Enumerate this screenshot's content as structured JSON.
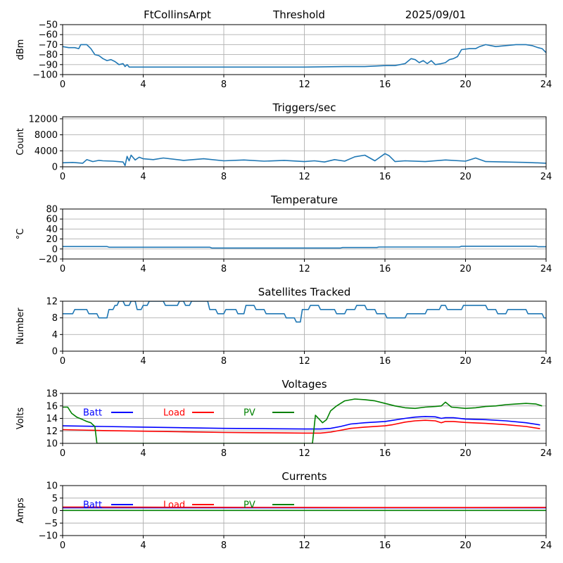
{
  "header": {
    "station": "FtCollinsArpt",
    "mode": "Threshold",
    "date": "2025/09/01"
  },
  "chart_data": [
    {
      "type": "line",
      "id": "signal",
      "title": "",
      "xlabel": "",
      "ylabel": "dBm",
      "xlim": [
        0,
        24
      ],
      "ylim": [
        -100,
        -50
      ],
      "xticks": [
        0,
        4,
        8,
        12,
        16,
        20,
        24
      ],
      "yticks": [
        -100,
        -90,
        -80,
        -70,
        -60,
        -50
      ],
      "ytick_labels": [
        "−100",
        "−90",
        "−80",
        "−70",
        "−60",
        "−50"
      ],
      "grid": true,
      "legend": false,
      "series": [
        {
          "color": "#1f77b4",
          "x": [
            0,
            0.3,
            0.6,
            0.8,
            0.9,
            1.0,
            1.2,
            1.4,
            1.6,
            1.8,
            2.0,
            2.2,
            2.4,
            2.6,
            2.8,
            3.0,
            3.1,
            3.2,
            3.3,
            4,
            6,
            8,
            10,
            12,
            14,
            15,
            16,
            16.5,
            17.0,
            17.3,
            17.5,
            17.7,
            17.9,
            18.1,
            18.3,
            18.5,
            18.8,
            19.0,
            19.2,
            19.4,
            19.6,
            19.8,
            20.2,
            20.5,
            20.7,
            21,
            21.5,
            22,
            22.5,
            23,
            23.3,
            23.6,
            23.8,
            24
          ],
          "y": [
            -72,
            -73,
            -73,
            -74,
            -70,
            -70,
            -70,
            -74,
            -80,
            -81,
            -84,
            -86,
            -85,
            -87,
            -90,
            -89,
            -92,
            -90,
            -92.5,
            -92.5,
            -92.5,
            -92.5,
            -92.5,
            -92.5,
            -92,
            -92,
            -91,
            -91,
            -89,
            -84,
            -85,
            -88,
            -86,
            -89,
            -86,
            -90,
            -89,
            -88,
            -85,
            -84,
            -82,
            -75,
            -74,
            -74,
            -72,
            -70,
            -72,
            -71,
            -70,
            -70,
            -71,
            -73,
            -74,
            -78
          ]
        }
      ]
    },
    {
      "type": "line",
      "id": "triggers",
      "title": "Triggers/sec",
      "xlabel": "",
      "ylabel": "Count",
      "xlim": [
        0,
        24
      ],
      "ylim": [
        0,
        12500
      ],
      "xticks": [
        0,
        4,
        8,
        12,
        16,
        20,
        24
      ],
      "yticks": [
        0,
        4000,
        8000,
        12000
      ],
      "ytick_labels": [
        "0",
        "4000",
        "8000",
        "12000"
      ],
      "grid": true,
      "legend": false,
      "series": [
        {
          "color": "#1f77b4",
          "x": [
            0,
            0.5,
            1.0,
            1.2,
            1.5,
            1.8,
            2.0,
            2.5,
            3.0,
            3.1,
            3.2,
            3.3,
            3.4,
            3.6,
            3.8,
            4.0,
            4.5,
            5,
            6,
            7,
            8,
            9,
            10,
            11,
            12,
            12.5,
            13,
            13.5,
            14.0,
            14.5,
            15.0,
            15.5,
            16.0,
            16.2,
            16.5,
            17,
            18,
            19,
            20,
            20.5,
            21,
            22,
            23,
            24
          ],
          "y": [
            1000,
            1100,
            900,
            1800,
            1300,
            1600,
            1500,
            1400,
            1200,
            300,
            2600,
            1500,
            2900,
            1700,
            2400,
            2000,
            1800,
            2200,
            1600,
            2000,
            1500,
            1700,
            1400,
            1600,
            1300,
            1500,
            1200,
            1800,
            1400,
            2500,
            2900,
            1500,
            3300,
            2800,
            1300,
            1500,
            1300,
            1700,
            1400,
            2200,
            1300,
            1200,
            1100,
            900
          ]
        }
      ]
    },
    {
      "type": "line",
      "id": "temperature",
      "title": "Temperature",
      "xlabel": "",
      "ylabel": "°C",
      "xlim": [
        0,
        24
      ],
      "ylim": [
        -20,
        80
      ],
      "xticks": [
        0,
        4,
        8,
        12,
        16,
        20,
        24
      ],
      "yticks": [
        -20,
        0,
        20,
        40,
        60,
        80
      ],
      "ytick_labels": [
        "−20",
        "0",
        "20",
        "40",
        "60",
        "80"
      ],
      "grid": true,
      "legend": false,
      "series": [
        {
          "color": "#1f77b4",
          "x": [
            0,
            2.2,
            2.3,
            7.3,
            7.4,
            13.8,
            13.9,
            15.6,
            15.7,
            19.7,
            19.8,
            23.5,
            23.6,
            24
          ],
          "y": [
            5,
            5,
            3.5,
            3.5,
            2,
            2,
            3,
            3,
            4,
            4,
            5.5,
            5.5,
            4.5,
            4.5
          ]
        }
      ]
    },
    {
      "type": "line",
      "id": "satellites",
      "title": "Satellites Tracked",
      "xlabel": "",
      "ylabel": "Number",
      "xlim": [
        0,
        24
      ],
      "ylim": [
        0,
        12
      ],
      "xticks": [
        0,
        4,
        8,
        12,
        16,
        20,
        24
      ],
      "yticks": [
        0,
        4,
        8,
        12
      ],
      "ytick_labels": [
        "0",
        "4",
        "8",
        "12"
      ],
      "grid": true,
      "legend": false,
      "series": [
        {
          "color": "#1f77b4",
          "x": [
            0,
            0.5,
            0.6,
            1.2,
            1.3,
            1.7,
            1.8,
            2.2,
            2.3,
            2.5,
            2.6,
            2.7,
            2.8,
            3.0,
            3.1,
            3.3,
            3.4,
            3.6,
            3.7,
            3.9,
            4.0,
            4.2,
            4.3,
            5,
            5.1,
            5.7,
            5.8,
            6.0,
            6.1,
            6.3,
            6.4,
            7.2,
            7.3,
            7.6,
            7.7,
            8.0,
            8.1,
            8.6,
            8.7,
            9.0,
            9.1,
            9.5,
            9.6,
            10.0,
            10.1,
            11.0,
            11.1,
            11.5,
            11.6,
            11.8,
            11.9,
            12.2,
            12.3,
            12.7,
            12.8,
            13.5,
            13.6,
            14.0,
            14.1,
            14.5,
            14.6,
            15.0,
            15.1,
            15.5,
            15.6,
            16.0,
            16.1,
            17.0,
            17.1,
            18.0,
            18.1,
            18.7,
            18.8,
            19.0,
            19.1,
            19.8,
            19.9,
            21.0,
            21.1,
            21.5,
            21.6,
            22.0,
            22.1,
            23.0,
            23.1,
            23.8,
            23.9,
            24
          ],
          "y": [
            9,
            9,
            10,
            10,
            9,
            9,
            8,
            8,
            10,
            10,
            11,
            11,
            12,
            12,
            11,
            11,
            12,
            12,
            10,
            10,
            11,
            11,
            12,
            12,
            11,
            11,
            12,
            12,
            11,
            11,
            12,
            12,
            10,
            10,
            9,
            9,
            10,
            10,
            9,
            9,
            11,
            11,
            10,
            10,
            9,
            9,
            8,
            8,
            7,
            7,
            10,
            10,
            11,
            11,
            10,
            10,
            9,
            9,
            10,
            10,
            11,
            11,
            10,
            10,
            9,
            9,
            8,
            8,
            9,
            9,
            10,
            10,
            11,
            11,
            10,
            10,
            11,
            11,
            10,
            10,
            9,
            9,
            10,
            10,
            9,
            9,
            8,
            8
          ]
        }
      ]
    },
    {
      "type": "line",
      "id": "voltages",
      "title": "Voltages",
      "xlabel": "",
      "ylabel": "Volts",
      "xlim": [
        0,
        24
      ],
      "ylim": [
        10,
        18
      ],
      "xticks": [
        0,
        4,
        8,
        12,
        16,
        20,
        24
      ],
      "yticks": [
        10,
        12,
        14,
        16,
        18
      ],
      "ytick_labels": [
        "10",
        "12",
        "14",
        "16",
        "18"
      ],
      "grid": true,
      "legend": true,
      "series": [
        {
          "name": "Batt",
          "color": "#0000ff",
          "x": [
            0,
            2,
            4,
            6,
            8,
            10,
            12,
            12.8,
            13.3,
            13.8,
            14.3,
            15,
            16,
            16.4,
            17,
            17.5,
            18,
            18.5,
            18.8,
            19.0,
            19.4,
            20,
            21,
            22,
            23,
            23.7
          ],
          "y": [
            12.8,
            12.7,
            12.6,
            12.5,
            12.4,
            12.35,
            12.3,
            12.3,
            12.4,
            12.7,
            13.1,
            13.3,
            13.5,
            13.7,
            14.0,
            14.2,
            14.3,
            14.25,
            14.0,
            14.1,
            14.1,
            13.9,
            13.8,
            13.6,
            13.3,
            12.95
          ]
        },
        {
          "name": "Load",
          "color": "#ff0000",
          "x": [
            0,
            2,
            4,
            6,
            8,
            10,
            12,
            12.8,
            13.3,
            13.8,
            14.3,
            15,
            16,
            16.4,
            17,
            17.5,
            18,
            18.5,
            18.8,
            19.0,
            19.4,
            20,
            21,
            22,
            23,
            23.7
          ],
          "y": [
            12.2,
            12.05,
            11.95,
            11.85,
            11.75,
            11.7,
            11.65,
            11.65,
            11.8,
            12.1,
            12.4,
            12.6,
            12.8,
            13.0,
            13.4,
            13.6,
            13.7,
            13.6,
            13.3,
            13.5,
            13.5,
            13.35,
            13.2,
            13.0,
            12.7,
            12.35
          ]
        },
        {
          "name": "PV",
          "color": "#008000",
          "x": [
            0,
            0.25,
            0.45,
            0.7,
            1.0,
            1.2,
            1.4,
            1.5,
            1.6,
            1.7,
            12.4,
            12.55,
            12.7,
            12.9,
            13.1,
            13.3,
            13.6,
            14,
            14.5,
            15,
            15.5,
            16,
            16.5,
            17,
            17.5,
            18,
            18.5,
            18.8,
            19.0,
            19.3,
            20,
            20.5,
            21,
            21.5,
            22,
            22.5,
            23,
            23.5,
            23.8
          ],
          "y": [
            15.8,
            15.8,
            14.8,
            14.2,
            13.8,
            13.5,
            13.3,
            13.0,
            12.7,
            10.0,
            10.0,
            14.5,
            14.0,
            13.3,
            13.8,
            15.2,
            16.0,
            16.8,
            17.1,
            17.0,
            16.8,
            16.4,
            16.0,
            15.7,
            15.6,
            15.8,
            15.9,
            16.0,
            16.6,
            15.8,
            15.6,
            15.7,
            15.9,
            16.0,
            16.2,
            16.3,
            16.4,
            16.3,
            16.0
          ]
        }
      ]
    },
    {
      "type": "line",
      "id": "currents",
      "title": "Currents",
      "xlabel": "",
      "ylabel": "Amps",
      "xlim": [
        0,
        24
      ],
      "ylim": [
        -10,
        10
      ],
      "xticks": [
        0,
        4,
        8,
        12,
        16,
        20,
        24
      ],
      "yticks": [
        -10,
        -5,
        0,
        5,
        10
      ],
      "ytick_labels": [
        "−10",
        "−5",
        "0",
        "5",
        "10"
      ],
      "grid": true,
      "legend": true,
      "series": [
        {
          "name": "Batt",
          "color": "#0000ff",
          "x": [
            0,
            24
          ],
          "y": [
            1.1,
            1.1
          ]
        },
        {
          "name": "Load",
          "color": "#ff0000",
          "x": [
            0,
            4,
            8,
            12,
            16,
            20,
            24
          ],
          "y": [
            1.4,
            1.35,
            1.3,
            1.25,
            1.2,
            1.2,
            1.25
          ]
        },
        {
          "name": "PV",
          "color": "#008000",
          "x": [
            0,
            24
          ],
          "y": [
            0.05,
            0.05
          ]
        }
      ]
    }
  ]
}
